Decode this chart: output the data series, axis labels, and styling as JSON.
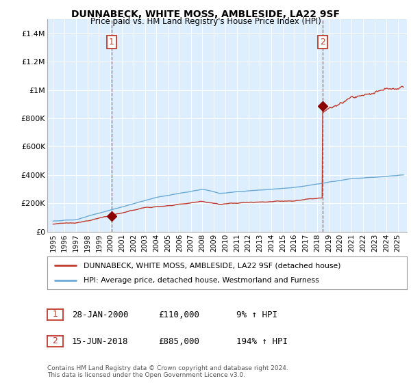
{
  "title": "DUNNABECK, WHITE MOSS, AMBLESIDE, LA22 9SF",
  "subtitle": "Price paid vs. HM Land Registry's House Price Index (HPI)",
  "legend_line1": "DUNNABECK, WHITE MOSS, AMBLESIDE, LA22 9SF (detached house)",
  "legend_line2": "HPI: Average price, detached house, Westmorland and Furness",
  "footnote": "Contains HM Land Registry data © Crown copyright and database right 2024.\nThis data is licensed under the Open Government Licence v3.0.",
  "sale1_date": 2000.08,
  "sale1_price": 110000,
  "sale1_label": "28-JAN-2000",
  "sale1_pct": "9%",
  "sale2_date": 2018.46,
  "sale2_price": 885000,
  "sale2_label": "15-JUN-2018",
  "sale2_pct": "194%",
  "hpi_color": "#6aaad4",
  "price_color": "#c0392b",
  "marker_color": "#8b0000",
  "annotation_color": "#c0392b",
  "background_color": "#ffffff",
  "plot_bg_color": "#ddeeff",
  "grid_color": "#ffffff",
  "ylim": [
    0,
    1500000
  ],
  "yticks": [
    0,
    200000,
    400000,
    600000,
    800000,
    1000000,
    1200000,
    1400000
  ],
  "ytick_labels": [
    "£0",
    "£200K",
    "£400K",
    "£600K",
    "£800K",
    "£1M",
    "£1.2M",
    "£1.4M"
  ],
  "xmin": 1994.5,
  "xmax": 2025.8,
  "xticks": [
    1995,
    1996,
    1997,
    1998,
    1999,
    2000,
    2001,
    2002,
    2003,
    2004,
    2005,
    2006,
    2007,
    2008,
    2009,
    2010,
    2011,
    2012,
    2013,
    2014,
    2015,
    2016,
    2017,
    2018,
    2019,
    2020,
    2021,
    2022,
    2023,
    2024,
    2025
  ]
}
